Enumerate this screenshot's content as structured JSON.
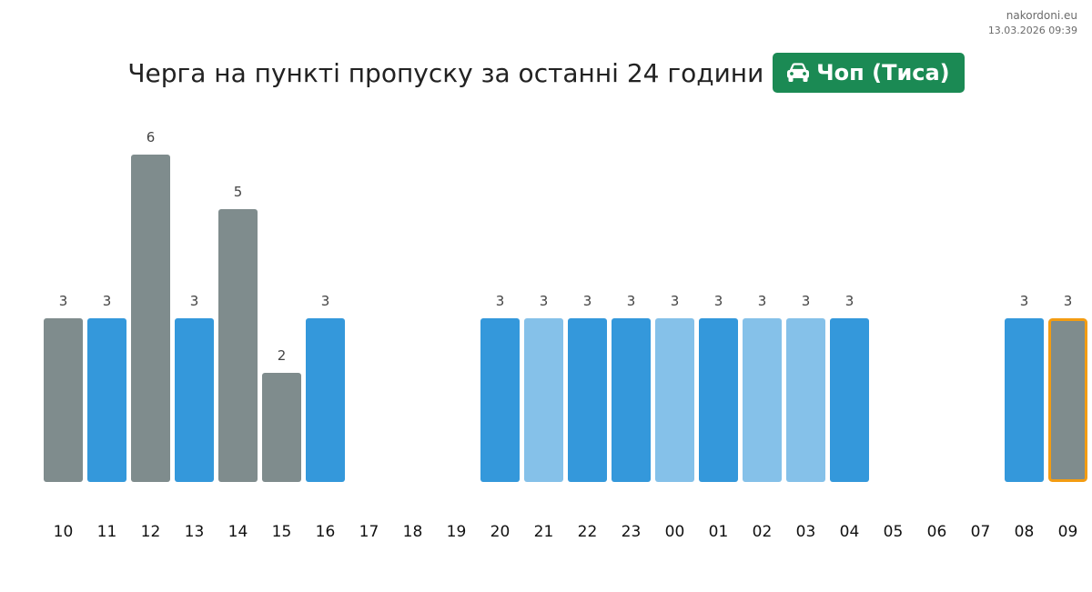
{
  "meta": {
    "site": "nakordoni.eu",
    "timestamp": "13.03.2026 09:39"
  },
  "header": {
    "title": "Черга на пункті пропуску за останні 24 години",
    "badge_label": "Чоп (Тиса)",
    "badge_icon": "car-icon",
    "badge_color": "#1b8a54"
  },
  "colors": {
    "gray": "#7f8c8d",
    "blue": "#3498db",
    "light_blue": "#85c1e9",
    "highlight_border": "#f39c12"
  },
  "chart_data": {
    "type": "bar",
    "categories": [
      "10",
      "11",
      "12",
      "13",
      "14",
      "15",
      "16",
      "17",
      "18",
      "19",
      "20",
      "21",
      "22",
      "23",
      "00",
      "01",
      "02",
      "03",
      "04",
      "05",
      "06",
      "07",
      "08",
      "09"
    ],
    "values": [
      3,
      3,
      6,
      3,
      5,
      2,
      3,
      null,
      null,
      null,
      3,
      3,
      3,
      3,
      3,
      3,
      3,
      3,
      3,
      null,
      null,
      null,
      3,
      3
    ],
    "bar_colors": [
      "gray",
      "blue",
      "gray",
      "blue",
      "gray",
      "gray",
      "blue",
      null,
      null,
      null,
      "blue",
      "light_blue",
      "blue",
      "blue",
      "light_blue",
      "blue",
      "light_blue",
      "light_blue",
      "blue",
      null,
      null,
      null,
      "blue",
      "gray"
    ],
    "highlighted_category": "09",
    "title": "",
    "xlabel": "",
    "ylabel": "",
    "ylim": [
      0,
      9
    ],
    "grid": false,
    "legend": "none"
  }
}
